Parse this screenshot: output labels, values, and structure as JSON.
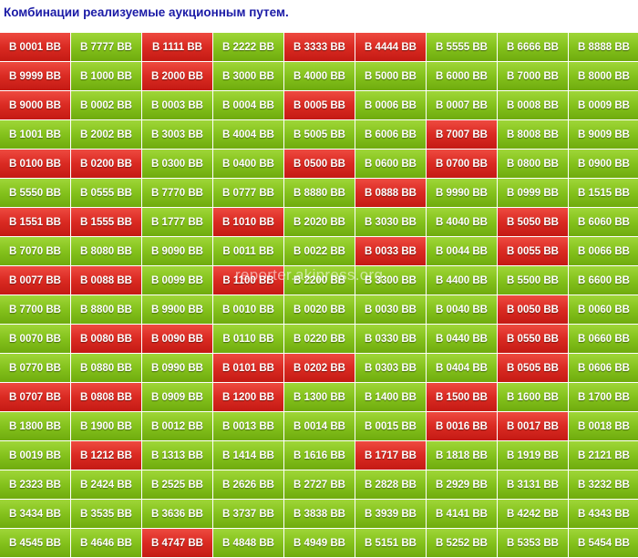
{
  "title": "Комбинации реализуемые аукционным путем.",
  "watermark": "reporter.akipress.org",
  "colors": {
    "available": "#84c21c",
    "auctioned": "#da2a22",
    "title": "#1a1aa6"
  },
  "plates": [
    [
      {
        "t": "B 0001 BB",
        "s": "red"
      },
      {
        "t": "B 7777 BB",
        "s": "green"
      },
      {
        "t": "B 1111 BB",
        "s": "red"
      },
      {
        "t": "B 2222 BB",
        "s": "green"
      },
      {
        "t": "B 3333 BB",
        "s": "red"
      },
      {
        "t": "B 4444 BB",
        "s": "red"
      },
      {
        "t": "B 5555 BB",
        "s": "green"
      },
      {
        "t": "B 6666 BB",
        "s": "green"
      },
      {
        "t": "B 8888 BB",
        "s": "green"
      }
    ],
    [
      {
        "t": "B 9999 BB",
        "s": "red"
      },
      {
        "t": "B 1000 BB",
        "s": "green"
      },
      {
        "t": "B 2000 BB",
        "s": "red"
      },
      {
        "t": "B 3000 BB",
        "s": "green"
      },
      {
        "t": "B 4000 BB",
        "s": "green"
      },
      {
        "t": "B 5000 BB",
        "s": "green"
      },
      {
        "t": "B 6000 BB",
        "s": "green"
      },
      {
        "t": "B 7000 BB",
        "s": "green"
      },
      {
        "t": "B 8000 BB",
        "s": "green"
      }
    ],
    [
      {
        "t": "B 9000 BB",
        "s": "red"
      },
      {
        "t": "B 0002 BB",
        "s": "green"
      },
      {
        "t": "B 0003 BB",
        "s": "green"
      },
      {
        "t": "B 0004 BB",
        "s": "green"
      },
      {
        "t": "B 0005 BB",
        "s": "red"
      },
      {
        "t": "B 0006 BB",
        "s": "green"
      },
      {
        "t": "B 0007 BB",
        "s": "green"
      },
      {
        "t": "B 0008 BB",
        "s": "green"
      },
      {
        "t": "B 0009 BB",
        "s": "green"
      }
    ],
    [
      {
        "t": "B 1001 BB",
        "s": "green"
      },
      {
        "t": "B 2002 BB",
        "s": "green"
      },
      {
        "t": "B 3003 BB",
        "s": "green"
      },
      {
        "t": "B 4004 BB",
        "s": "green"
      },
      {
        "t": "B 5005 BB",
        "s": "green"
      },
      {
        "t": "B 6006 BB",
        "s": "green"
      },
      {
        "t": "B 7007 BB",
        "s": "red"
      },
      {
        "t": "B 8008 BB",
        "s": "green"
      },
      {
        "t": "B 9009 BB",
        "s": "green"
      }
    ],
    [
      {
        "t": "B 0100 BB",
        "s": "red"
      },
      {
        "t": "B 0200 BB",
        "s": "red"
      },
      {
        "t": "B 0300 BB",
        "s": "green"
      },
      {
        "t": "B 0400 BB",
        "s": "green"
      },
      {
        "t": "B 0500 BB",
        "s": "red"
      },
      {
        "t": "B 0600 BB",
        "s": "green"
      },
      {
        "t": "B 0700 BB",
        "s": "red"
      },
      {
        "t": "B 0800 BB",
        "s": "green"
      },
      {
        "t": "B 0900 BB",
        "s": "green"
      }
    ],
    [
      {
        "t": "B 5550 BB",
        "s": "green"
      },
      {
        "t": "B 0555 BB",
        "s": "green"
      },
      {
        "t": "B 7770 BB",
        "s": "green"
      },
      {
        "t": "B 0777 BB",
        "s": "green"
      },
      {
        "t": "B 8880 BB",
        "s": "green"
      },
      {
        "t": "B 0888 BB",
        "s": "red"
      },
      {
        "t": "B 9990 BB",
        "s": "green"
      },
      {
        "t": "B 0999 BB",
        "s": "green"
      },
      {
        "t": "B 1515 BB",
        "s": "green"
      }
    ],
    [
      {
        "t": "B 1551 BB",
        "s": "red"
      },
      {
        "t": "B 1555 BB",
        "s": "red"
      },
      {
        "t": "B 1777 BB",
        "s": "green"
      },
      {
        "t": "B 1010 BB",
        "s": "red"
      },
      {
        "t": "B 2020 BB",
        "s": "green"
      },
      {
        "t": "B 3030 BB",
        "s": "green"
      },
      {
        "t": "B 4040 BB",
        "s": "green"
      },
      {
        "t": "B 5050 BB",
        "s": "red"
      },
      {
        "t": "B 6060 BB",
        "s": "green"
      }
    ],
    [
      {
        "t": "B 7070 BB",
        "s": "green"
      },
      {
        "t": "B 8080 BB",
        "s": "green"
      },
      {
        "t": "B 9090 BB",
        "s": "green"
      },
      {
        "t": "B 0011 BB",
        "s": "green"
      },
      {
        "t": "B 0022 BB",
        "s": "green"
      },
      {
        "t": "B 0033 BB",
        "s": "red"
      },
      {
        "t": "B 0044 BB",
        "s": "green"
      },
      {
        "t": "B 0055 BB",
        "s": "red"
      },
      {
        "t": "B 0066 BB",
        "s": "green"
      }
    ],
    [
      {
        "t": "B 0077 BB",
        "s": "red"
      },
      {
        "t": "B 0088 BB",
        "s": "red"
      },
      {
        "t": "B 0099 BB",
        "s": "green"
      },
      {
        "t": "B 1100 BB",
        "s": "red"
      },
      {
        "t": "B 2200 BB",
        "s": "green"
      },
      {
        "t": "B 3300 BB",
        "s": "green"
      },
      {
        "t": "B 4400 BB",
        "s": "green"
      },
      {
        "t": "B 5500 BB",
        "s": "green"
      },
      {
        "t": "B 6600 BB",
        "s": "green"
      }
    ],
    [
      {
        "t": "B 7700 BB",
        "s": "green"
      },
      {
        "t": "B 8800 BB",
        "s": "green"
      },
      {
        "t": "B 9900 BB",
        "s": "green"
      },
      {
        "t": "B 0010 BB",
        "s": "green"
      },
      {
        "t": "B 0020 BB",
        "s": "green"
      },
      {
        "t": "B 0030 BB",
        "s": "green"
      },
      {
        "t": "B 0040 BB",
        "s": "green"
      },
      {
        "t": "B 0050 BB",
        "s": "red"
      },
      {
        "t": "B 0060 BB",
        "s": "green"
      }
    ],
    [
      {
        "t": "B 0070 BB",
        "s": "green"
      },
      {
        "t": "B 0080 BB",
        "s": "red"
      },
      {
        "t": "B 0090 BB",
        "s": "red"
      },
      {
        "t": "B 0110 BB",
        "s": "green"
      },
      {
        "t": "B 0220 BB",
        "s": "green"
      },
      {
        "t": "B 0330 BB",
        "s": "green"
      },
      {
        "t": "B 0440 BB",
        "s": "green"
      },
      {
        "t": "B 0550 BB",
        "s": "red"
      },
      {
        "t": "B 0660 BB",
        "s": "green"
      }
    ],
    [
      {
        "t": "B 0770 BB",
        "s": "green"
      },
      {
        "t": "B 0880 BB",
        "s": "green"
      },
      {
        "t": "B 0990 BB",
        "s": "green"
      },
      {
        "t": "B 0101 BB",
        "s": "red"
      },
      {
        "t": "B 0202 BB",
        "s": "red"
      },
      {
        "t": "B 0303 BB",
        "s": "green"
      },
      {
        "t": "B 0404 BB",
        "s": "green"
      },
      {
        "t": "B 0505 BB",
        "s": "red"
      },
      {
        "t": "B 0606 BB",
        "s": "green"
      }
    ],
    [
      {
        "t": "B 0707 BB",
        "s": "red"
      },
      {
        "t": "B 0808 BB",
        "s": "red"
      },
      {
        "t": "B 0909 BB",
        "s": "green"
      },
      {
        "t": "B 1200 BB",
        "s": "red"
      },
      {
        "t": "B 1300 BB",
        "s": "green"
      },
      {
        "t": "B 1400 BB",
        "s": "green"
      },
      {
        "t": "B 1500 BB",
        "s": "red"
      },
      {
        "t": "B 1600 BB",
        "s": "green"
      },
      {
        "t": "B 1700 BB",
        "s": "green"
      }
    ],
    [
      {
        "t": "B 1800 BB",
        "s": "green"
      },
      {
        "t": "B 1900 BB",
        "s": "green"
      },
      {
        "t": "B 0012 BB",
        "s": "green"
      },
      {
        "t": "B 0013 BB",
        "s": "green"
      },
      {
        "t": "B 0014 BB",
        "s": "green"
      },
      {
        "t": "B 0015 BB",
        "s": "green"
      },
      {
        "t": "B 0016 BB",
        "s": "red"
      },
      {
        "t": "B 0017 BB",
        "s": "red"
      },
      {
        "t": "B 0018 BB",
        "s": "green"
      }
    ],
    [
      {
        "t": "B 0019 BB",
        "s": "green"
      },
      {
        "t": "B 1212 BB",
        "s": "red"
      },
      {
        "t": "B 1313 BB",
        "s": "green"
      },
      {
        "t": "B 1414 BB",
        "s": "green"
      },
      {
        "t": "B 1616 BB",
        "s": "green"
      },
      {
        "t": "B 1717 BB",
        "s": "red"
      },
      {
        "t": "B 1818 BB",
        "s": "green"
      },
      {
        "t": "B 1919 BB",
        "s": "green"
      },
      {
        "t": "B 2121 BB",
        "s": "green"
      }
    ],
    [
      {
        "t": "B 2323 BB",
        "s": "green"
      },
      {
        "t": "B 2424 BB",
        "s": "green"
      },
      {
        "t": "B 2525 BB",
        "s": "green"
      },
      {
        "t": "B 2626 BB",
        "s": "green"
      },
      {
        "t": "B 2727 BB",
        "s": "green"
      },
      {
        "t": "B 2828 BB",
        "s": "green"
      },
      {
        "t": "B 2929 BB",
        "s": "green"
      },
      {
        "t": "B 3131 BB",
        "s": "green"
      },
      {
        "t": "B 3232 BB",
        "s": "green"
      }
    ],
    [
      {
        "t": "B 3434 BB",
        "s": "green"
      },
      {
        "t": "B 3535 BB",
        "s": "green"
      },
      {
        "t": "B 3636 BB",
        "s": "green"
      },
      {
        "t": "B 3737 BB",
        "s": "green"
      },
      {
        "t": "B 3838 BB",
        "s": "green"
      },
      {
        "t": "B 3939 BB",
        "s": "green"
      },
      {
        "t": "B 4141 BB",
        "s": "green"
      },
      {
        "t": "B 4242 BB",
        "s": "green"
      },
      {
        "t": "B 4343 BB",
        "s": "green"
      }
    ],
    [
      {
        "t": "B 4545 BB",
        "s": "green"
      },
      {
        "t": "B 4646 BB",
        "s": "green"
      },
      {
        "t": "B 4747 BB",
        "s": "red"
      },
      {
        "t": "B 4848 BB",
        "s": "green"
      },
      {
        "t": "B 4949 BB",
        "s": "green"
      },
      {
        "t": "B 5151 BB",
        "s": "green"
      },
      {
        "t": "B 5252 BB",
        "s": "green"
      },
      {
        "t": "B 5353 BB",
        "s": "green"
      },
      {
        "t": "B 5454 BB",
        "s": "green"
      }
    ]
  ]
}
